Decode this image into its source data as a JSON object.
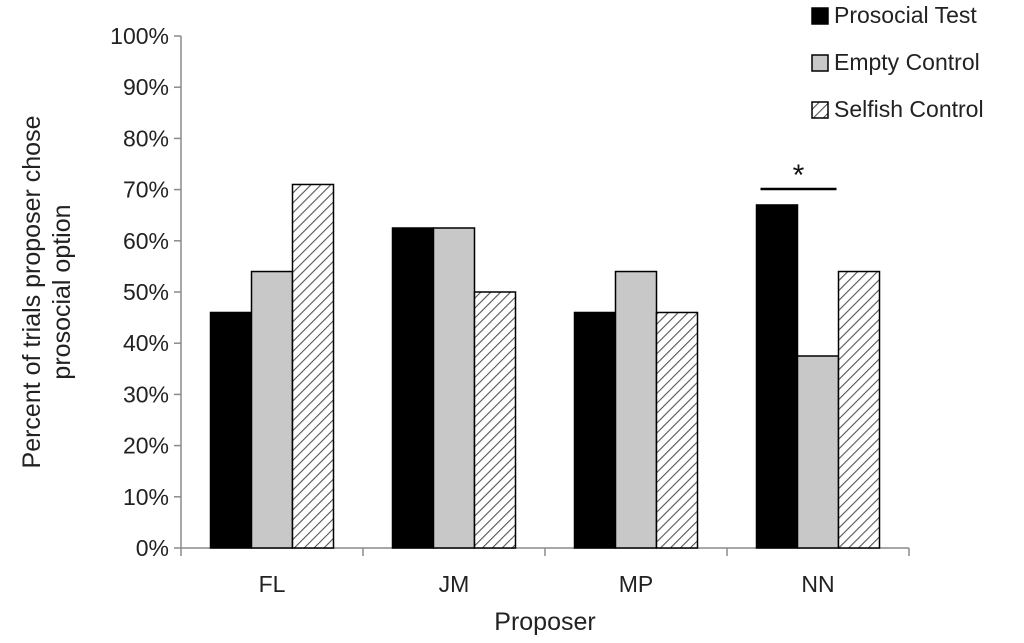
{
  "chart_data": {
    "type": "bar",
    "title": "",
    "xlabel": "Proposer",
    "ylabel_lines": [
      "Percent of trials proposer chose",
      "prosocial option"
    ],
    "ylim": [
      0,
      100
    ],
    "yticks": [
      0,
      10,
      20,
      30,
      40,
      50,
      60,
      70,
      80,
      90,
      100
    ],
    "ytick_suffix": "%",
    "grid": false,
    "legend_position": "top-right",
    "categories": [
      "FL",
      "JM",
      "MP",
      "NN"
    ],
    "series": [
      {
        "name": "Prosocial Test",
        "values": [
          46,
          62.5,
          46,
          67
        ],
        "fill": "#000000",
        "pattern": "solid"
      },
      {
        "name": "Empty Control",
        "values": [
          54,
          62.5,
          54,
          37.5
        ],
        "fill": "#c8c8c8",
        "pattern": "solid"
      },
      {
        "name": "Selfish Control",
        "values": [
          71,
          50,
          46,
          54
        ],
        "fill": "#ffffff",
        "pattern": "hatch"
      }
    ],
    "annotations": [
      {
        "category": "NN",
        "from_series": 0,
        "to_series": 1,
        "text": "*"
      }
    ]
  }
}
